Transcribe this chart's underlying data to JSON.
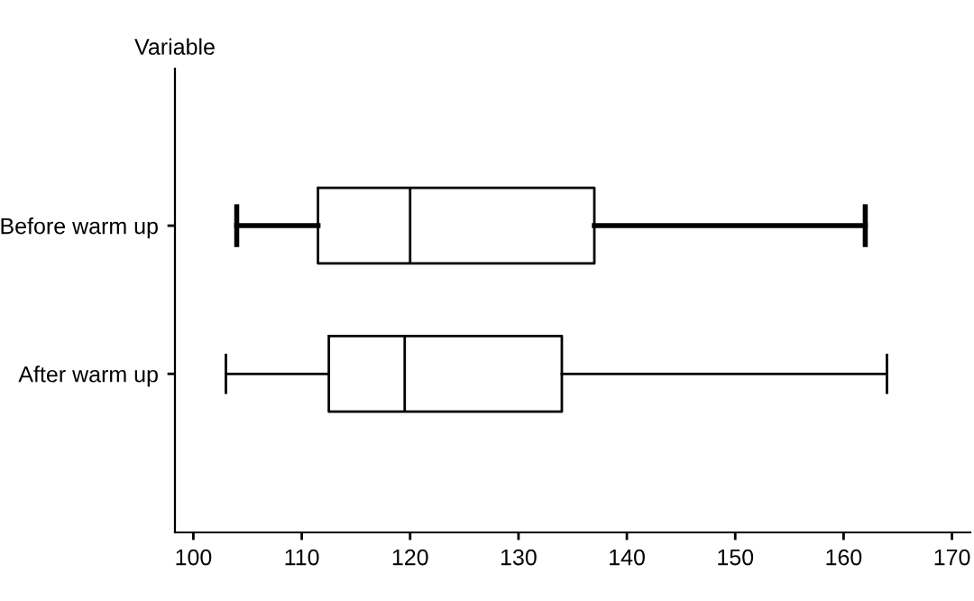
{
  "chart_data": {
    "type": "box",
    "orientation": "horizontal",
    "ylabel": "Variable",
    "categories": [
      "Before warm up",
      "After warm up"
    ],
    "boxes": [
      {
        "low": 104,
        "q1": 111.5,
        "median": 120,
        "q3": 137,
        "high": 162
      },
      {
        "low": 103,
        "q1": 112.5,
        "median": 119.5,
        "q3": 134,
        "high": 164
      }
    ],
    "xlim": [
      98.3,
      171.7
    ],
    "xticks": [
      100,
      110,
      120,
      130,
      140,
      150,
      160,
      170
    ],
    "grid": false,
    "legend": false
  }
}
